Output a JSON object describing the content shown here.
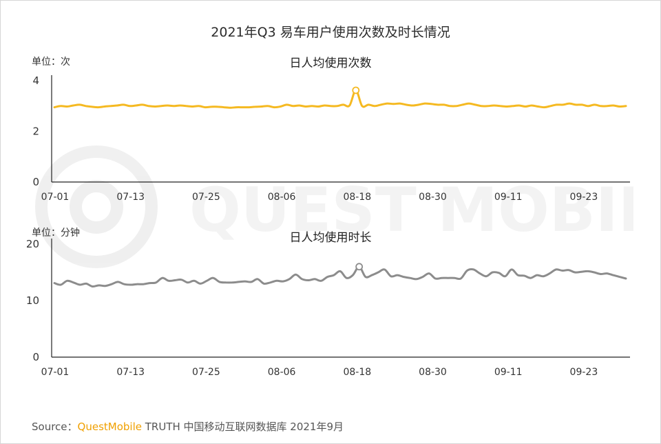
{
  "title": "2021年Q3 易车用户使用次数及时长情况",
  "watermark": "QUEST MOBILE",
  "source": {
    "prefix": "Source：",
    "brand": "QuestMobile",
    "suffix": " TRUTH 中国移动互联网数据库 2021年9月"
  },
  "chart_data": [
    {
      "type": "line",
      "title": "日人均使用次数",
      "unit": "单位：次",
      "color": "#f5b921",
      "ylim": [
        0,
        4
      ],
      "yticks": [
        0,
        2,
        4
      ],
      "xticks": [
        "07-01",
        "07-13",
        "07-25",
        "08-06",
        "08-18",
        "08-30",
        "09-11",
        "09-23"
      ],
      "highlight_index": 48,
      "values": [
        2.95,
        3.0,
        2.98,
        3.02,
        3.05,
        3.0,
        2.97,
        2.95,
        2.98,
        3.0,
        3.02,
        3.05,
        3.0,
        3.02,
        3.05,
        3.0,
        2.98,
        3.0,
        3.02,
        3.0,
        3.02,
        3.0,
        2.98,
        3.0,
        2.95,
        2.97,
        2.97,
        2.95,
        2.93,
        2.95,
        2.95,
        2.95,
        2.97,
        2.98,
        3.0,
        2.95,
        2.98,
        3.05,
        3.0,
        3.02,
        2.98,
        3.0,
        2.98,
        3.02,
        3.0,
        3.0,
        3.05,
        3.02,
        3.62,
        3.0,
        3.05,
        3.0,
        3.05,
        3.1,
        3.08,
        3.1,
        3.05,
        3.02,
        3.05,
        3.1,
        3.08,
        3.05,
        3.05,
        3.0,
        3.0,
        3.05,
        3.1,
        3.05,
        3.0,
        3.0,
        3.02,
        3.0,
        2.98,
        3.0,
        3.02,
        2.98,
        3.02,
        2.98,
        2.95,
        3.0,
        3.05,
        3.05,
        3.1,
        3.05,
        3.05,
        3.0,
        3.05,
        3.0,
        3.0,
        3.02,
        2.98,
        3.0
      ]
    },
    {
      "type": "line",
      "title": "日人均使用时长",
      "unit": "单位：分钟",
      "color": "#8c8c8c",
      "ylim": [
        0,
        20
      ],
      "yticks": [
        0,
        10,
        20
      ],
      "xticks": [
        "07-01",
        "07-13",
        "07-25",
        "08-06",
        "08-18",
        "08-30",
        "09-11",
        "09-23"
      ],
      "highlight_index": 48,
      "values": [
        13.1,
        12.8,
        13.5,
        13.2,
        12.8,
        13.0,
        12.5,
        12.7,
        12.6,
        12.9,
        13.3,
        12.9,
        12.8,
        12.9,
        12.9,
        13.1,
        13.2,
        14.0,
        13.5,
        13.6,
        13.7,
        13.2,
        13.5,
        13.0,
        13.5,
        14.0,
        13.3,
        13.2,
        13.2,
        13.3,
        13.4,
        13.3,
        13.8,
        13.0,
        13.2,
        13.5,
        13.4,
        13.8,
        14.6,
        13.8,
        13.6,
        13.8,
        13.5,
        14.2,
        14.5,
        15.2,
        14.0,
        14.5,
        16.0,
        14.2,
        14.5,
        15.0,
        15.5,
        14.3,
        14.5,
        14.2,
        14.0,
        13.8,
        14.2,
        14.8,
        13.9,
        14.0,
        14.0,
        14.0,
        13.9,
        15.3,
        15.5,
        14.8,
        14.3,
        15.0,
        14.9,
        14.3,
        15.5,
        14.5,
        14.4,
        14.0,
        14.5,
        14.3,
        14.8,
        15.5,
        15.3,
        15.4,
        15.0,
        15.1,
        15.2,
        15.0,
        14.7,
        14.8,
        14.5,
        14.2,
        13.9
      ]
    }
  ]
}
